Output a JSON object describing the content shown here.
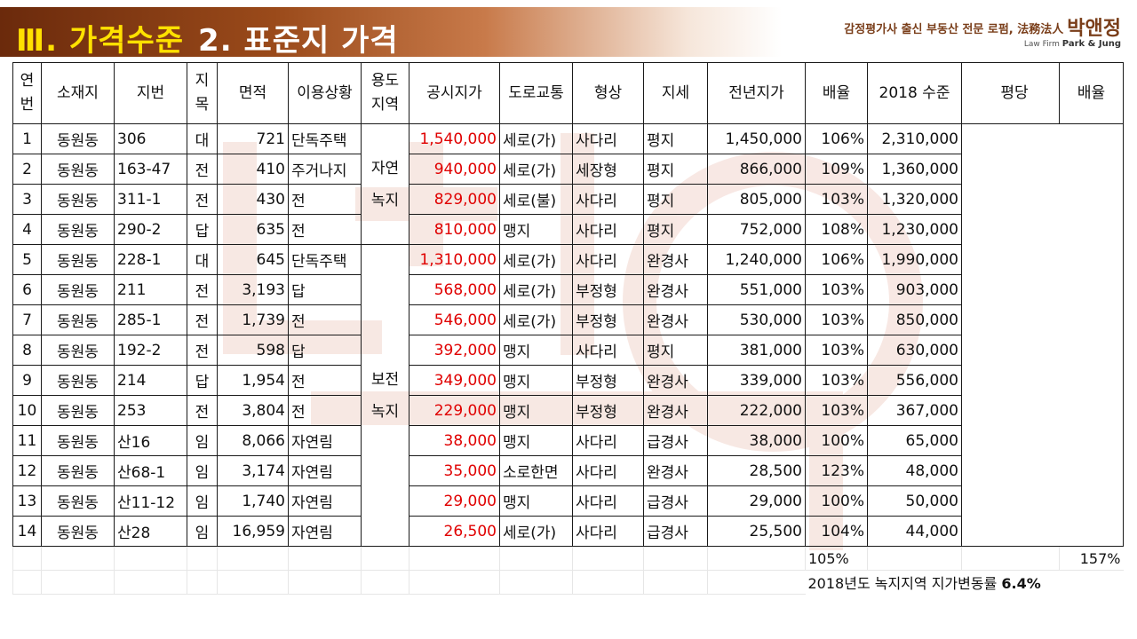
{
  "header": {
    "roman": "Ⅲ.",
    "title": "가격수준",
    "section": "2. 표준지 가격",
    "firm_tagline": "감정평가사 출신 부동산 전문 로펌, 法務法人",
    "firm_name": "박앤정",
    "firm_en_prefix": "Law Firm",
    "firm_en_name": "Park & Jung"
  },
  "table": {
    "headers": {
      "no_1": "연",
      "no_2": "번",
      "location": "소재지",
      "lot": "지번",
      "category_1": "지",
      "category_2": "목",
      "area": "면적",
      "use": "이용상황",
      "zone_1": "용도",
      "zone_2": "지역",
      "price": "공시지가",
      "road": "도로교통",
      "shape": "형상",
      "terrain": "지세",
      "prev_price": "전년지가",
      "ratio": "배율",
      "level_2018": "2018 수준",
      "per_pyeong": "평당",
      "ratio2": "배율"
    },
    "zone_a_1": "자연",
    "zone_a_2": "녹지",
    "zone_b_1": "보전",
    "zone_b_2": "녹지",
    "rows": [
      {
        "no": "1",
        "location": "동원동",
        "lot": "306",
        "category": "대",
        "area": "721",
        "use": "단독주택",
        "price": "1,540,000",
        "road": "세로(가)",
        "shape": "사다리",
        "terrain": "평지",
        "prev_price": "1,450,000",
        "ratio": "106%",
        "level_2018": "2,310,000"
      },
      {
        "no": "2",
        "location": "동원동",
        "lot": "163-47",
        "category": "전",
        "area": "410",
        "use": "주거나지",
        "price": "940,000",
        "road": "세로(가)",
        "shape": "세장형",
        "terrain": "평지",
        "prev_price": "866,000",
        "ratio": "109%",
        "level_2018": "1,360,000"
      },
      {
        "no": "3",
        "location": "동원동",
        "lot": "311-1",
        "category": "전",
        "area": "430",
        "use": "전",
        "price": "829,000",
        "road": "세로(불)",
        "shape": "사다리",
        "terrain": "평지",
        "prev_price": "805,000",
        "ratio": "103%",
        "level_2018": "1,320,000"
      },
      {
        "no": "4",
        "location": "동원동",
        "lot": "290-2",
        "category": "답",
        "area": "635",
        "use": "전",
        "price": "810,000",
        "road": "맹지",
        "shape": "사다리",
        "terrain": "평지",
        "prev_price": "752,000",
        "ratio": "108%",
        "level_2018": "1,230,000"
      },
      {
        "no": "5",
        "location": "동원동",
        "lot": "228-1",
        "category": "대",
        "area": "645",
        "use": "단독주택",
        "price": "1,310,000",
        "road": "세로(가)",
        "shape": "사다리",
        "terrain": "완경사",
        "prev_price": "1,240,000",
        "ratio": "106%",
        "level_2018": "1,990,000"
      },
      {
        "no": "6",
        "location": "동원동",
        "lot": "211",
        "category": "전",
        "area": "3,193",
        "use": "답",
        "price": "568,000",
        "road": "세로(가)",
        "shape": "부정형",
        "terrain": "완경사",
        "prev_price": "551,000",
        "ratio": "103%",
        "level_2018": "903,000"
      },
      {
        "no": "7",
        "location": "동원동",
        "lot": "285-1",
        "category": "전",
        "area": "1,739",
        "use": "전",
        "price": "546,000",
        "road": "세로(가)",
        "shape": "부정형",
        "terrain": "완경사",
        "prev_price": "530,000",
        "ratio": "103%",
        "level_2018": "850,000"
      },
      {
        "no": "8",
        "location": "동원동",
        "lot": "192-2",
        "category": "전",
        "area": "598",
        "use": "답",
        "price": "392,000",
        "road": "맹지",
        "shape": "사다리",
        "terrain": "평지",
        "prev_price": "381,000",
        "ratio": "103%",
        "level_2018": "630,000"
      },
      {
        "no": "9",
        "location": "동원동",
        "lot": "214",
        "category": "답",
        "area": "1,954",
        "use": "전",
        "price": "349,000",
        "road": "맹지",
        "shape": "부정형",
        "terrain": "완경사",
        "prev_price": "339,000",
        "ratio": "103%",
        "level_2018": "556,000"
      },
      {
        "no": "10",
        "location": "동원동",
        "lot": "253",
        "category": "전",
        "area": "3,804",
        "use": "전",
        "price": "229,000",
        "road": "맹지",
        "shape": "부정형",
        "terrain": "완경사",
        "prev_price": "222,000",
        "ratio": "103%",
        "level_2018": "367,000"
      },
      {
        "no": "11",
        "location": "동원동",
        "lot": "산16",
        "category": "임",
        "area": "8,066",
        "use": "자연림",
        "price": "38,000",
        "road": "맹지",
        "shape": "사다리",
        "terrain": "급경사",
        "prev_price": "38,000",
        "ratio": "100%",
        "level_2018": "65,000"
      },
      {
        "no": "12",
        "location": "동원동",
        "lot": "산68-1",
        "category": "임",
        "area": "3,174",
        "use": "자연림",
        "price": "35,000",
        "road": "소로한면",
        "shape": "사다리",
        "terrain": "완경사",
        "prev_price": "28,500",
        "ratio": "123%",
        "level_2018": "48,000"
      },
      {
        "no": "13",
        "location": "동원동",
        "lot": "산11-12",
        "category": "임",
        "area": "1,740",
        "use": "자연림",
        "price": "29,000",
        "road": "맹지",
        "shape": "사다리",
        "terrain": "급경사",
        "prev_price": "29,000",
        "ratio": "100%",
        "level_2018": "50,000"
      },
      {
        "no": "14",
        "location": "동원동",
        "lot": "산28",
        "category": "임",
        "area": "16,959",
        "use": "자연림",
        "price": "26,500",
        "road": "세로(가)",
        "shape": "사다리",
        "terrain": "급경사",
        "prev_price": "25,500",
        "ratio": "104%",
        "level_2018": "44,000"
      }
    ],
    "summary": {
      "avg_ratio": "105%",
      "right_ratio": "157%",
      "note_a": "2018년도 녹지지역 지가변동률 ",
      "note_b": "6.4%"
    },
    "colors": {
      "price_text": "#e00000",
      "header_dark": "#6b2a0c",
      "header_yellow": "#ffe100"
    }
  }
}
